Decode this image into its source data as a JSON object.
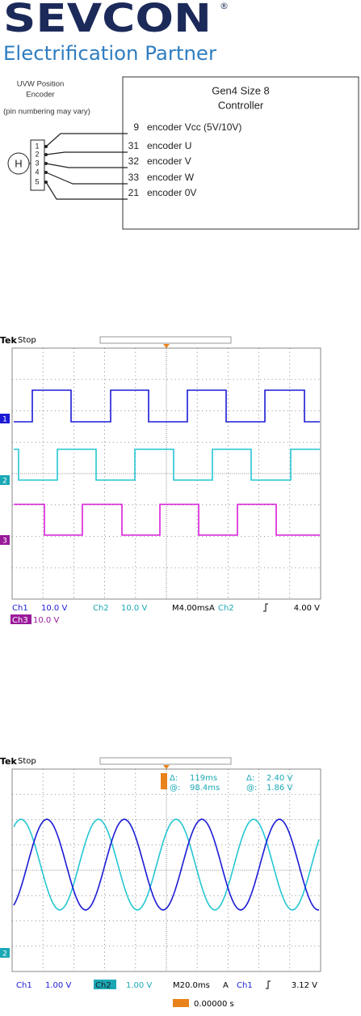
{
  "logo": {
    "brand": "SEVCON",
    "registered": "®",
    "tagline": "Electrification Partner"
  },
  "diagram": {
    "encoder_label": [
      "UVW Position",
      "Encoder",
      "(pin numbering may vary)"
    ],
    "sensor": "H",
    "pins": [
      "1",
      "2",
      "3",
      "4",
      "5"
    ],
    "controller": [
      "Gen4 Size 8",
      "Controller"
    ],
    "connections": [
      {
        "pin": "9",
        "signal": "encoder Vcc (5V/10V)"
      },
      {
        "pin": "31",
        "signal": "encoder U"
      },
      {
        "pin": "32",
        "signal": "encoder V"
      },
      {
        "pin": "33",
        "signal": "encoder W"
      },
      {
        "pin": "21",
        "signal": "encoder 0V"
      }
    ]
  },
  "scope1": {
    "brand": "Tek",
    "state": "Stop",
    "markers": [
      "1",
      "2",
      "3"
    ],
    "ch1": [
      "Ch1",
      "10.0 V"
    ],
    "ch2": [
      "Ch2",
      "10.0 V"
    ],
    "timebase": "M4.00ms",
    "trigger": [
      "A",
      "Ch2",
      "4.00 V"
    ],
    "ch3": [
      "Ch3",
      "10.0 V"
    ]
  },
  "scope2": {
    "brand": "Tek",
    "state": "Stop",
    "markers": [
      "2"
    ],
    "cursor": [
      "Δ:",
      "119ms",
      "Δ:",
      "2.40 V",
      "@:",
      "98.4ms",
      "@:",
      "1.86 V"
    ],
    "ch1": [
      "Ch1",
      "1.00 V"
    ],
    "ch2": [
      "Ch2",
      "1.00 V"
    ],
    "timebase": "M20.0ms",
    "trigger": [
      "A",
      "Ch1",
      "3.12 V"
    ],
    "position": "0.00000 s"
  }
}
